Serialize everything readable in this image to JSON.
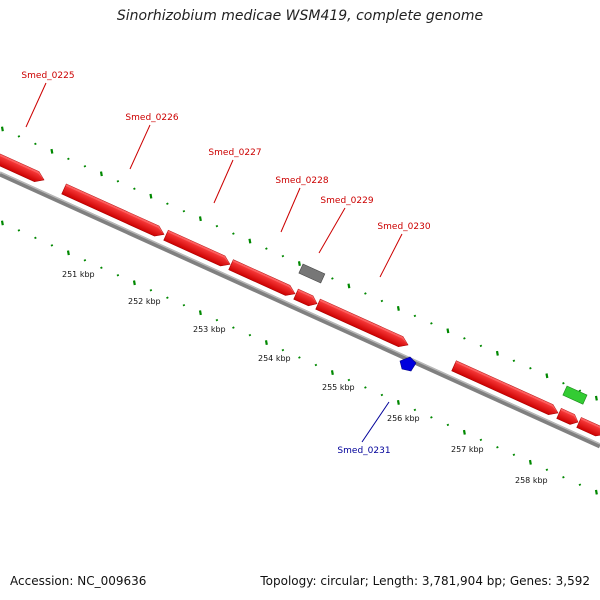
{
  "title": "Sinorhizobium medicae WSM419, complete genome",
  "footer": {
    "accession": "Accession: NC_009636",
    "summary": "Topology: circular; Length: 3,781,904 bp; Genes: 3,592"
  },
  "colors": {
    "gene_red": "#ff0000",
    "gene_gray": "#777777",
    "gene_blue": "#0000dd",
    "gene_green": "#33cc33",
    "tick_green": "#008800",
    "backbone": "#888888",
    "label_red": "#cc0000",
    "label_blue": "#000099"
  },
  "ticks": [
    {
      "label": "251 kbp"
    },
    {
      "label": "252 kbp"
    },
    {
      "label": "253 kbp"
    },
    {
      "label": "254 kbp"
    },
    {
      "label": "255 kbp"
    },
    {
      "label": "256 kbp"
    },
    {
      "label": "257 kbp"
    },
    {
      "label": "258 kbp"
    }
  ],
  "gene_labels": [
    {
      "name": "Smed_0225",
      "color": "red"
    },
    {
      "name": "Smed_0226",
      "color": "red"
    },
    {
      "name": "Smed_0227",
      "color": "red"
    },
    {
      "name": "Smed_0228",
      "color": "red"
    },
    {
      "name": "Smed_0229",
      "color": "red"
    },
    {
      "name": "Smed_0230",
      "color": "red"
    },
    {
      "name": "Smed_0231",
      "color": "blue"
    }
  ]
}
